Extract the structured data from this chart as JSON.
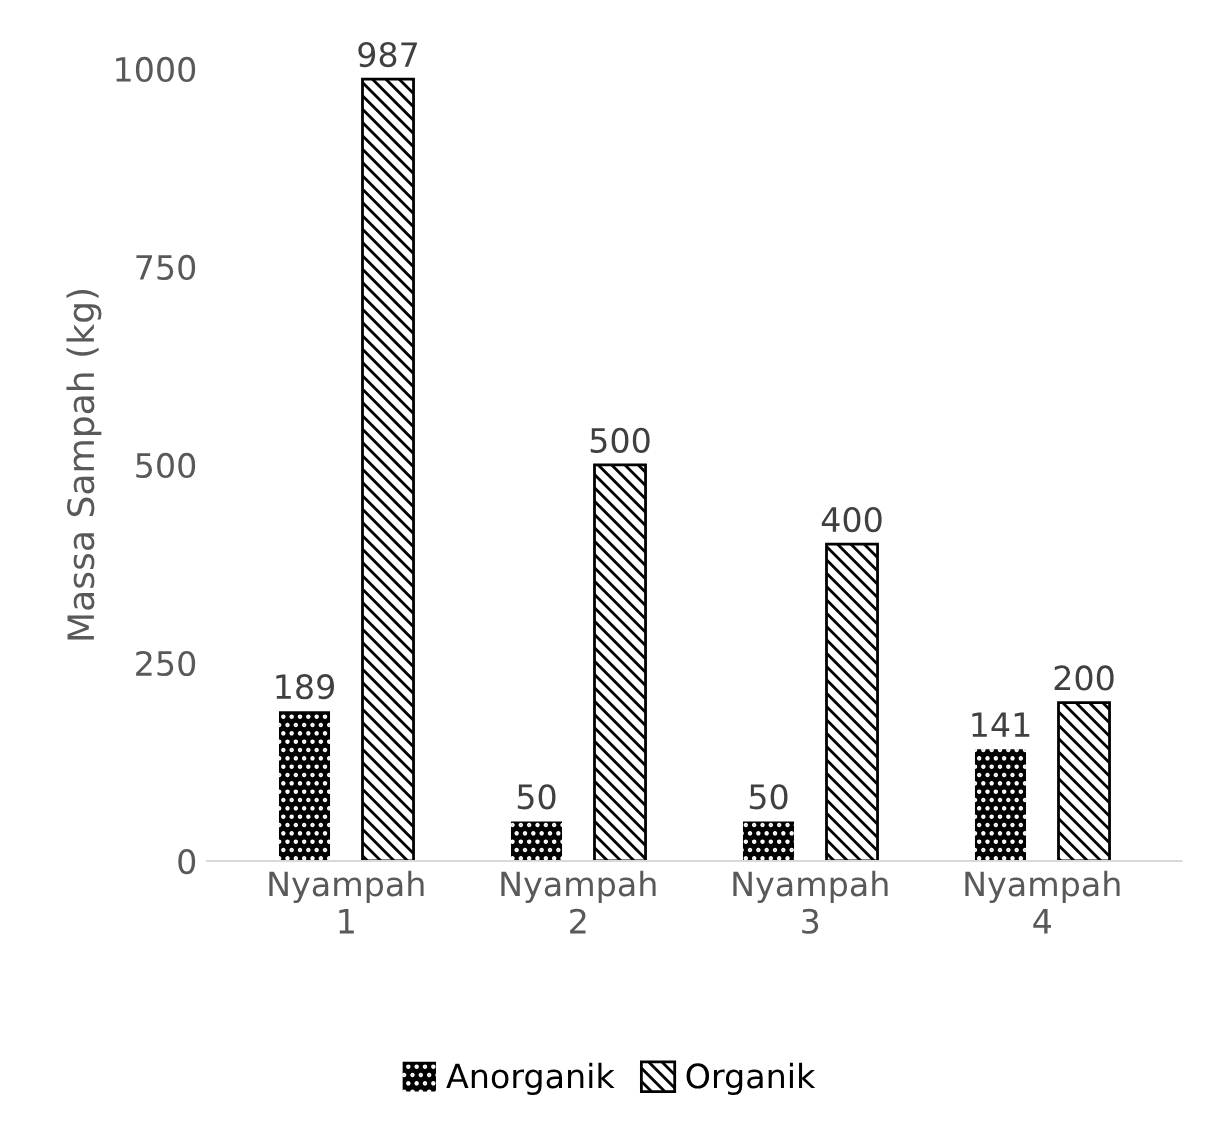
{
  "chart_data": {
    "type": "bar",
    "ylabel": "Massa Sampah (kg)",
    "categories": [
      "Nyampah\n1",
      "Nyampah\n2",
      "Nyampah\n3",
      "Nyampah\n4"
    ],
    "series": [
      {
        "name": "Anorganik",
        "color": "#000000",
        "values": [
          189,
          50,
          50,
          141
        ]
      },
      {
        "name": "Organik",
        "color": "#000000",
        "values": [
          987,
          500,
          400,
          200
        ]
      }
    ],
    "ylim": [
      0,
      1000
    ],
    "yticks": [
      0,
      250,
      500,
      750,
      1000
    ],
    "grid": false,
    "legend": "bottom",
    "data_labels": true
  }
}
